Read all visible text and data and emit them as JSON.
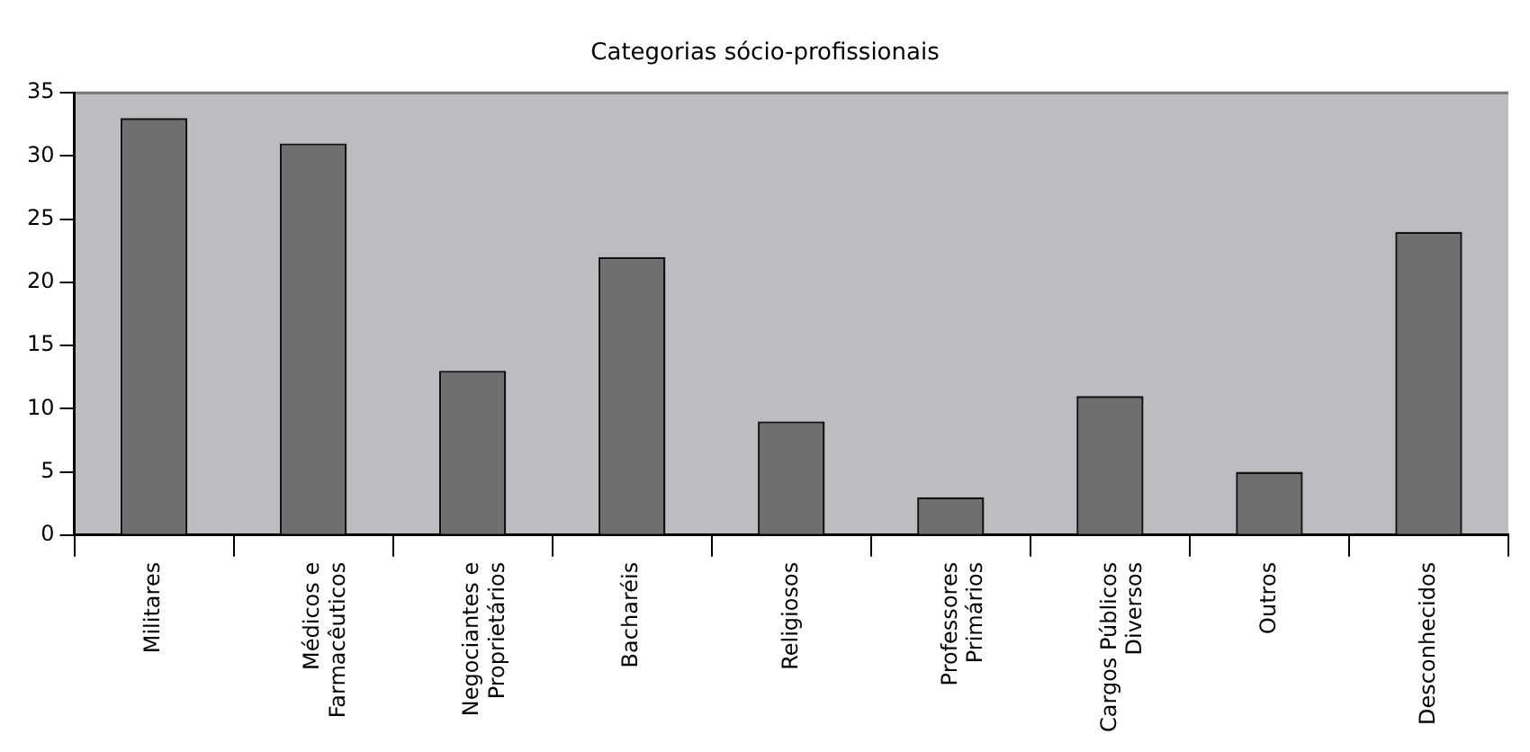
{
  "chart_data": {
    "type": "bar",
    "title": "Categorias sócio-profissionais",
    "categories": [
      "Militares",
      "Médicos e Farmacêuticos",
      "Negociantes e Proprietários",
      "Bacharéis",
      "Religiosos",
      "Professores Primários",
      "Cargos Públicos Diversos",
      "Outros",
      "Desconhecidos"
    ],
    "values": [
      33,
      31,
      13,
      22,
      9,
      3,
      11,
      5,
      24
    ],
    "color": "#6e6f71",
    "ylim": [
      0,
      35
    ],
    "yticks": [
      0,
      5,
      10,
      15,
      20,
      25,
      30,
      35
    ],
    "grid": false
  }
}
